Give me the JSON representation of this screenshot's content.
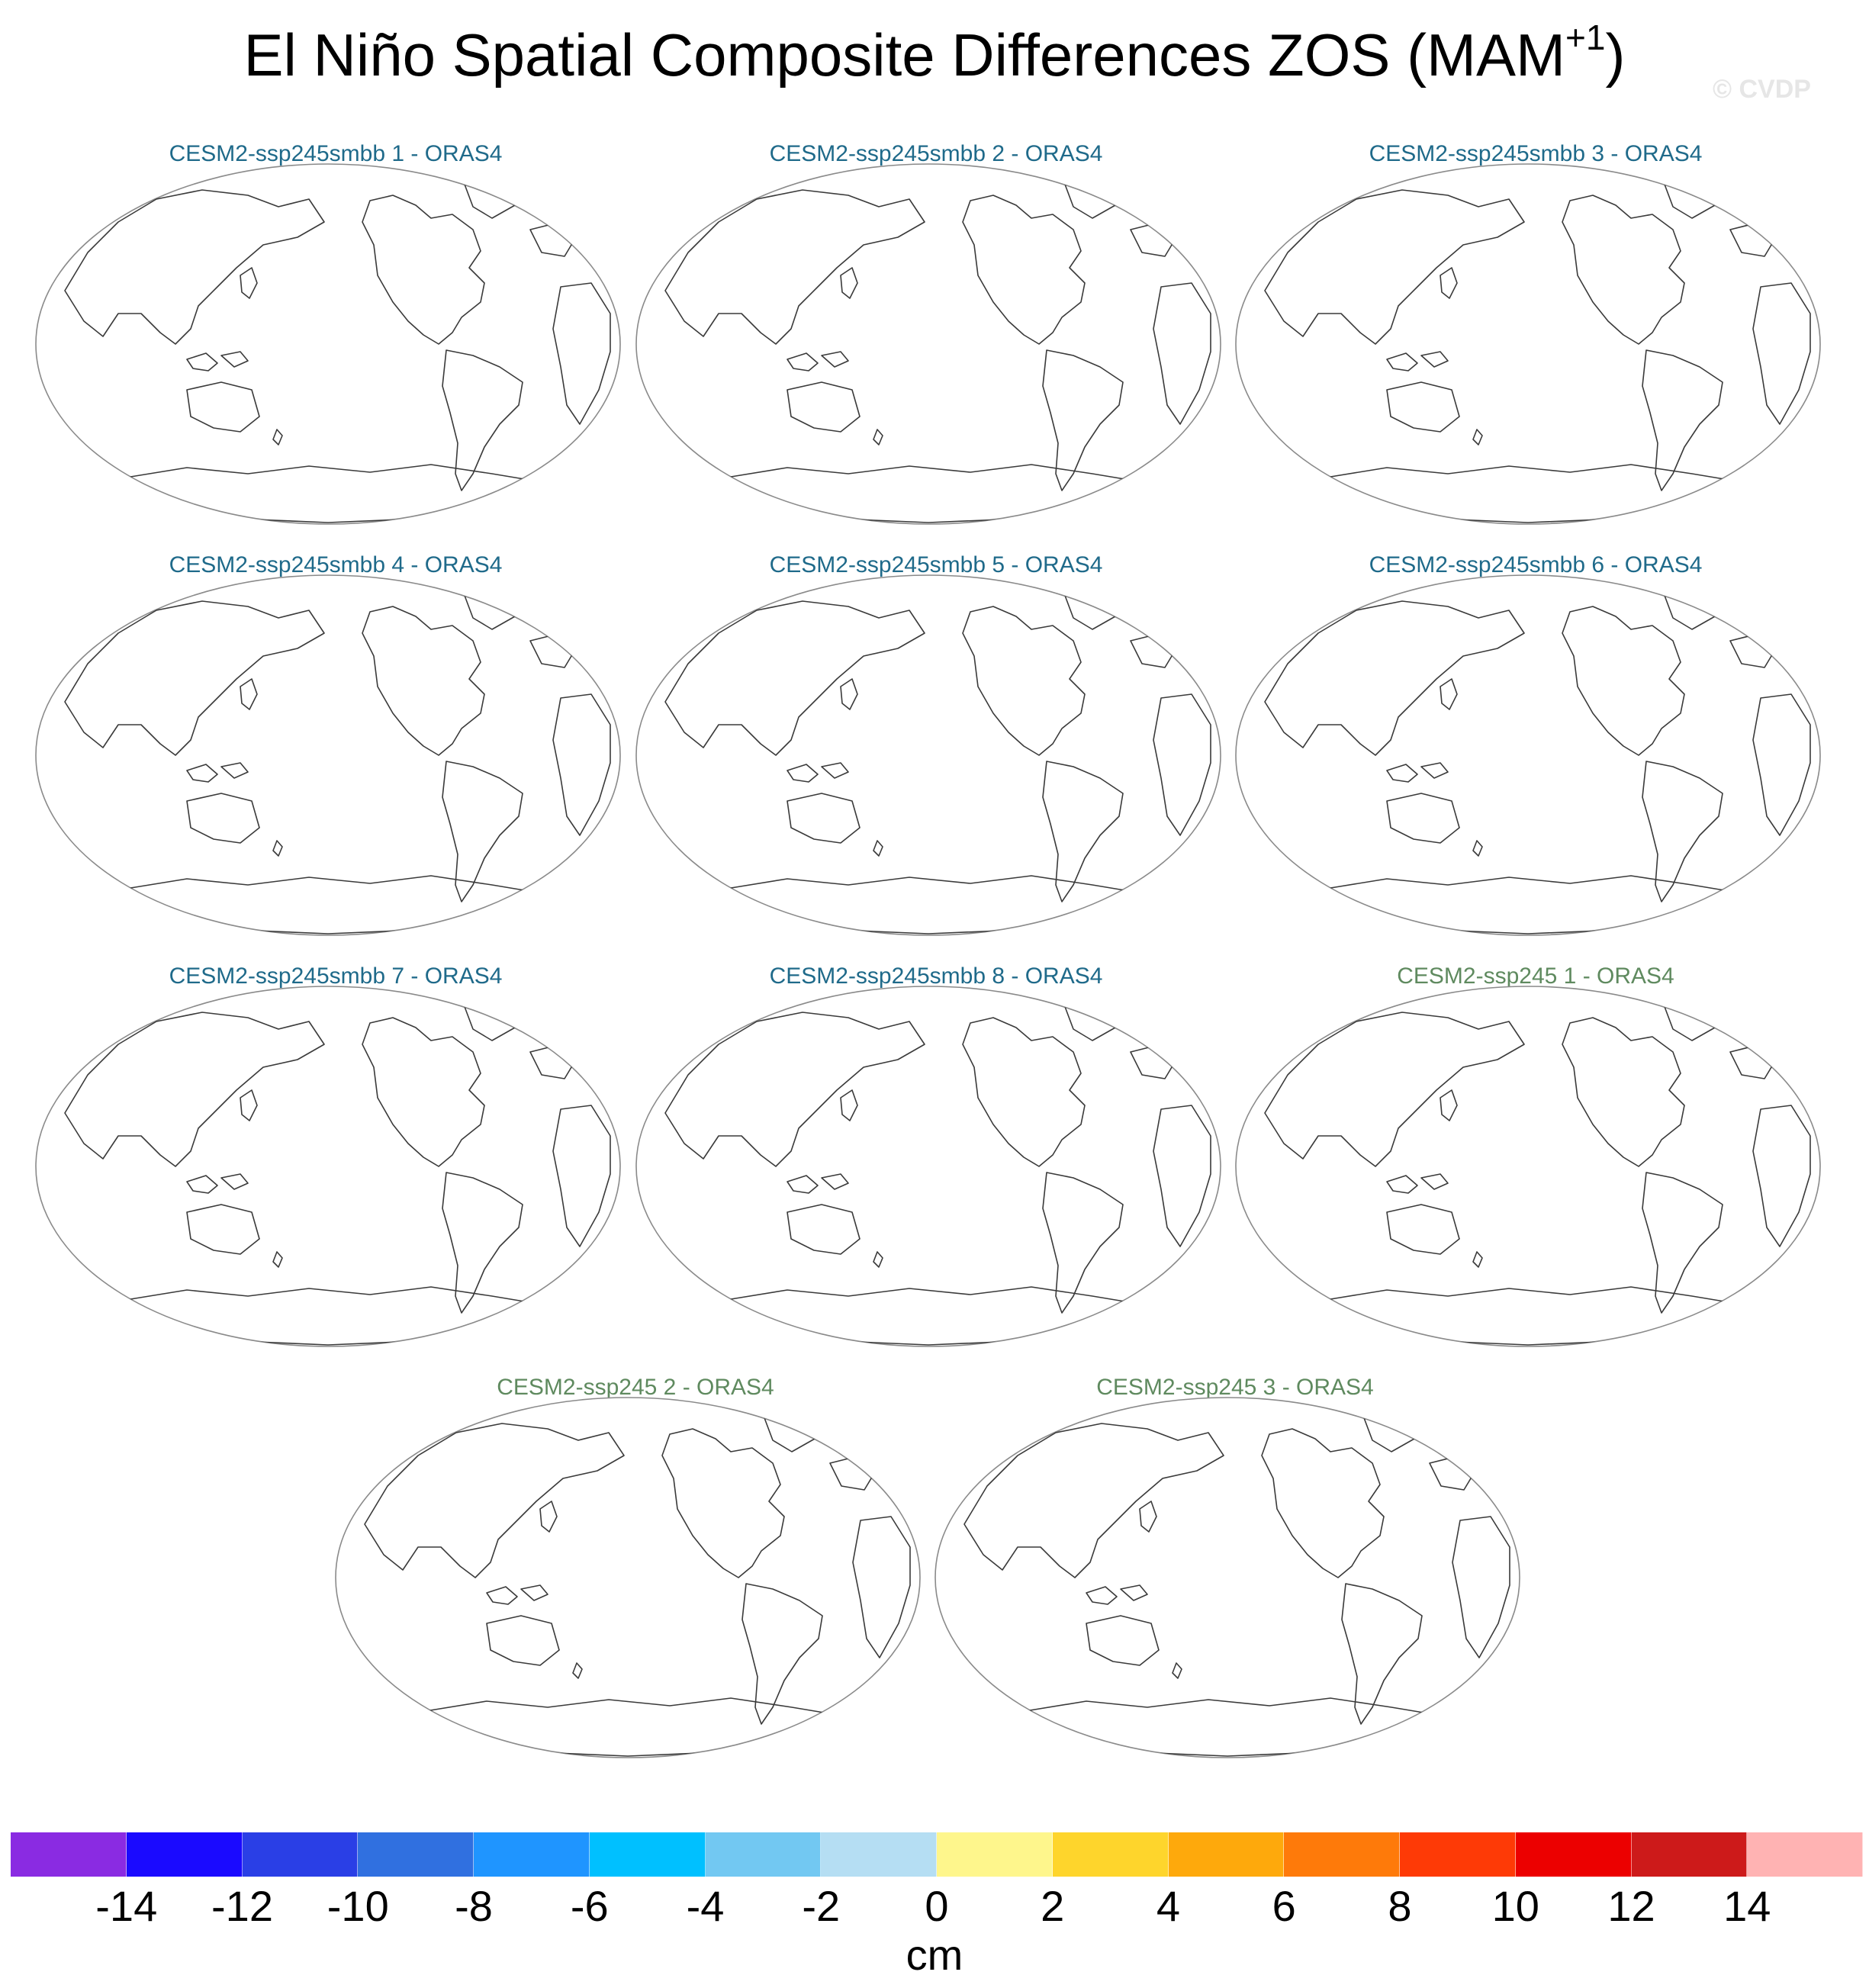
{
  "title": {
    "text": "El Niño Spatial Composite Differences ZOS (MAM",
    "sup": "+1",
    "close": ")"
  },
  "credit": "© CVDP",
  "panels": [
    {
      "label": "CESM2-ssp245smbb 1 - ORAS4",
      "color": "#1f6a8a"
    },
    {
      "label": "CESM2-ssp245smbb 2 - ORAS4",
      "color": "#1f6a8a"
    },
    {
      "label": "CESM2-ssp245smbb 3 - ORAS4",
      "color": "#1f6a8a"
    },
    {
      "label": "CESM2-ssp245smbb 4 - ORAS4",
      "color": "#1f6a8a"
    },
    {
      "label": "CESM2-ssp245smbb 5 - ORAS4",
      "color": "#1f6a8a"
    },
    {
      "label": "CESM2-ssp245smbb 6 - ORAS4",
      "color": "#1f6a8a"
    },
    {
      "label": "CESM2-ssp245smbb 7 - ORAS4",
      "color": "#1f6a8a"
    },
    {
      "label": "CESM2-ssp245smbb 8 - ORAS4",
      "color": "#1f6a8a"
    },
    {
      "label": "CESM2-ssp245 1 - ORAS4",
      "color": "#5f8a5f"
    },
    {
      "label": "CESM2-ssp245 2 - ORAS4",
      "color": "#5f8a5f"
    },
    {
      "label": "CESM2-ssp245 3 - ORAS4",
      "color": "#5f8a5f"
    }
  ],
  "colorbar": {
    "colors": [
      "#8a2be2",
      "#1a0aff",
      "#2a3fe6",
      "#3070e0",
      "#1f95ff",
      "#00c0ff",
      "#72c8f2",
      "#b5def3",
      "#fef68c",
      "#fed52c",
      "#fea90c",
      "#fe7a0a",
      "#fe3a06",
      "#ec0000",
      "#cd1a1a",
      "#ffb3b3"
    ],
    "ticks": [
      "-14",
      "-12",
      "-10",
      "-8",
      "-6",
      "-4",
      "-2",
      "0",
      "2",
      "4",
      "6",
      "8",
      "10",
      "12",
      "14"
    ],
    "units": "cm"
  }
}
